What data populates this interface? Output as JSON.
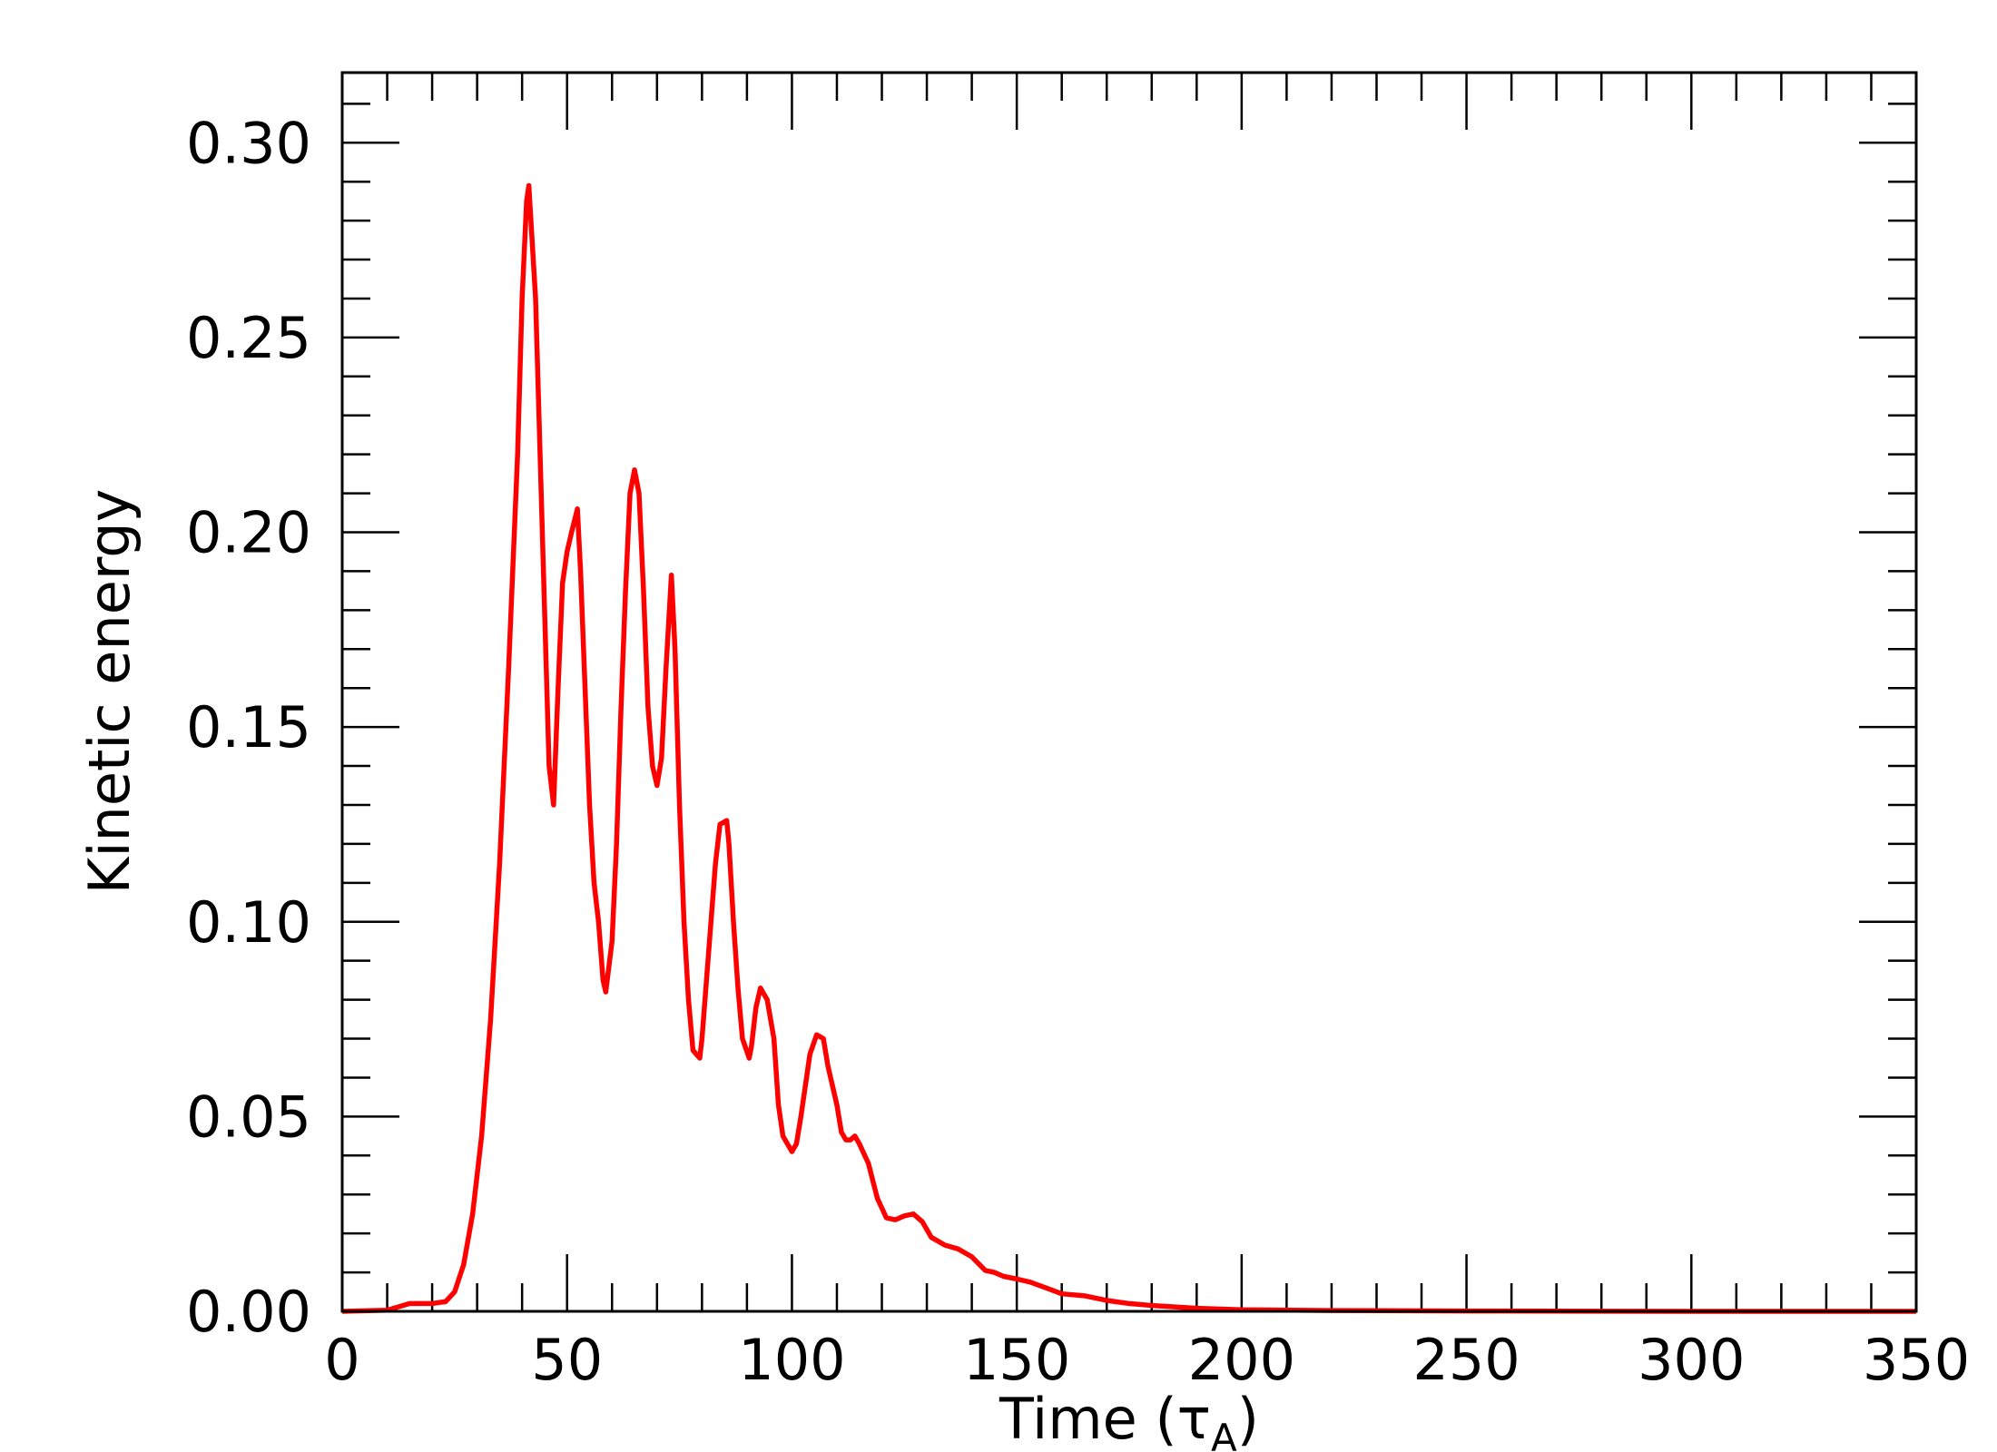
{
  "chart_data": {
    "type": "line",
    "xlabel": [
      "Time (τ",
      "A",
      ")"
    ],
    "ylabel": "Kinetic energy",
    "x": [
      0,
      10,
      15,
      20,
      23,
      25,
      27,
      29,
      31,
      33,
      35,
      37,
      39,
      40,
      41,
      41.5,
      43,
      45,
      46,
      47,
      48,
      49,
      50,
      51,
      52.3,
      53,
      54,
      55,
      56,
      57,
      58,
      58.6,
      60,
      61,
      62,
      63,
      64,
      65,
      66,
      67,
      68,
      69,
      70,
      71,
      72,
      73.2,
      74,
      75,
      76,
      77,
      78,
      79.5,
      80,
      81,
      82,
      83,
      84,
      85.5,
      86,
      87,
      88,
      89,
      90.5,
      91,
      92,
      93,
      94.5,
      96,
      97,
      98,
      100,
      101,
      102,
      104,
      105.5,
      107,
      108,
      110,
      111,
      112,
      113,
      114,
      115,
      117,
      119,
      121,
      123,
      125,
      127,
      129,
      131,
      134,
      137,
      140,
      143,
      145,
      147,
      150,
      153,
      157,
      160,
      165,
      170,
      175,
      180,
      190,
      200,
      220,
      250,
      300,
      350
    ],
    "series": [
      {
        "name": "Kinetic energy",
        "color": "#ff0000",
        "values": [
          0,
          0.0003,
          0.002,
          0.002,
          0.0025,
          0.005,
          0.012,
          0.025,
          0.045,
          0.075,
          0.115,
          0.165,
          0.22,
          0.26,
          0.285,
          0.289,
          0.26,
          0.18,
          0.14,
          0.13,
          0.16,
          0.187,
          0.195,
          0.2,
          0.206,
          0.19,
          0.16,
          0.13,
          0.11,
          0.1,
          0.085,
          0.082,
          0.095,
          0.12,
          0.155,
          0.185,
          0.21,
          0.216,
          0.21,
          0.185,
          0.155,
          0.14,
          0.135,
          0.142,
          0.165,
          0.189,
          0.17,
          0.13,
          0.1,
          0.08,
          0.067,
          0.065,
          0.07,
          0.085,
          0.1,
          0.115,
          0.125,
          0.126,
          0.12,
          0.1,
          0.083,
          0.07,
          0.065,
          0.068,
          0.078,
          0.083,
          0.08,
          0.07,
          0.053,
          0.045,
          0.041,
          0.043,
          0.05,
          0.066,
          0.071,
          0.07,
          0.063,
          0.053,
          0.046,
          0.044,
          0.044,
          0.045,
          0.043,
          0.038,
          0.029,
          0.024,
          0.0235,
          0.0245,
          0.025,
          0.023,
          0.019,
          0.017,
          0.016,
          0.014,
          0.0105,
          0.01,
          0.009,
          0.0083,
          0.0075,
          0.0058,
          0.0045,
          0.004,
          0.0028,
          0.002,
          0.0015,
          0.0008,
          0.0004,
          0.0002,
          0.0001,
          0,
          0
        ]
      }
    ],
    "xlim": [
      0,
      350
    ],
    "ylim": [
      0,
      0.318
    ],
    "xticks": [
      0,
      50,
      100,
      150,
      200,
      250,
      300,
      350
    ],
    "yticks": [
      {
        "value": 0,
        "label": "0.00"
      },
      {
        "value": 0.05,
        "label": "0.05"
      },
      {
        "value": 0.1,
        "label": "0.10"
      },
      {
        "value": 0.15,
        "label": "0.15"
      },
      {
        "value": 0.2,
        "label": "0.20"
      },
      {
        "value": 0.25,
        "label": "0.25"
      },
      {
        "value": 0.3,
        "label": "0.30"
      }
    ],
    "xticks_minor": [
      10,
      20,
      30,
      40,
      60,
      70,
      80,
      90,
      110,
      120,
      130,
      140,
      160,
      170,
      180,
      190,
      210,
      220,
      230,
      240,
      260,
      270,
      280,
      290,
      310,
      320,
      330,
      340
    ],
    "yticks_minor": [
      0.01,
      0.02,
      0.03,
      0.04,
      0.06,
      0.07,
      0.08,
      0.09,
      0.11,
      0.12,
      0.13,
      0.14,
      0.16,
      0.17,
      0.18,
      0.19,
      0.21,
      0.22,
      0.23,
      0.24,
      0.26,
      0.27,
      0.28,
      0.29,
      0.31
    ]
  }
}
